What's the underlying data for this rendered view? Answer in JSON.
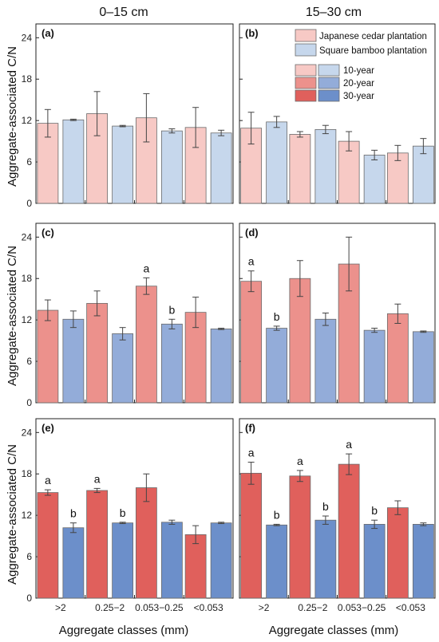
{
  "column_headers": [
    "0–15 cm",
    "15–30 cm"
  ],
  "row_ylabel": "Aggregate-associated C/N",
  "xlabel": "Aggregate classes (mm)",
  "legend": {
    "species": [
      "Japanese cedar plantation",
      "Square bamboo plantation"
    ],
    "ages": [
      "10-year",
      "20-year",
      "30-year"
    ]
  },
  "colors": {
    "cedar": [
      "#f7c9c5",
      "#ec918c",
      "#e0605c"
    ],
    "bamboo": [
      "#c6d7ec",
      "#93acd9",
      "#6c8fca"
    ]
  },
  "chart_data": [
    {
      "type": "bar",
      "panel": "(a)",
      "depth": "0–15 cm",
      "age": "10-year",
      "categories": [
        ">2",
        "0.25−2",
        "0.053−0.25",
        "<0.053"
      ],
      "ylim": [
        0,
        26
      ],
      "yticks": [
        0,
        6,
        12,
        18,
        24
      ],
      "series": [
        {
          "name": "Japanese cedar plantation",
          "values": [
            11.6,
            13.0,
            12.4,
            11.0
          ],
          "errors": [
            2.0,
            3.2,
            3.5,
            2.9
          ],
          "letters": [
            "",
            "",
            "",
            ""
          ]
        },
        {
          "name": "Square bamboo plantation",
          "values": [
            12.1,
            11.2,
            10.5,
            10.2
          ],
          "errors": [
            0.1,
            0.1,
            0.3,
            0.4
          ],
          "letters": [
            "",
            "",
            "",
            ""
          ]
        }
      ]
    },
    {
      "type": "bar",
      "panel": "(b)",
      "depth": "15–30 cm",
      "age": "10-year",
      "categories": [
        ">2",
        "0.25−2",
        "0.053−0.25",
        "<0.053"
      ],
      "ylim": [
        0,
        26
      ],
      "yticks": [
        0,
        6,
        12,
        18,
        24
      ],
      "series": [
        {
          "name": "Japanese cedar plantation",
          "values": [
            10.9,
            10.0,
            9.0,
            7.3
          ],
          "errors": [
            2.3,
            0.4,
            1.4,
            1.1
          ],
          "letters": [
            "",
            "",
            "",
            ""
          ]
        },
        {
          "name": "Square bamboo plantation",
          "values": [
            11.8,
            10.7,
            7.0,
            8.3
          ],
          "errors": [
            0.8,
            0.6,
            0.7,
            1.1
          ],
          "letters": [
            "",
            "",
            "",
            ""
          ]
        }
      ]
    },
    {
      "type": "bar",
      "panel": "(c)",
      "depth": "0–15 cm",
      "age": "20-year",
      "categories": [
        ">2",
        "0.25−2",
        "0.053−0.25",
        "<0.053"
      ],
      "ylim": [
        0,
        26
      ],
      "yticks": [
        0,
        6,
        12,
        18,
        24
      ],
      "series": [
        {
          "name": "Japanese cedar plantation",
          "values": [
            13.4,
            14.4,
            16.9,
            13.1
          ],
          "errors": [
            1.5,
            1.8,
            1.2,
            2.2
          ],
          "letters": [
            "",
            "",
            "a",
            ""
          ]
        },
        {
          "name": "Square bamboo plantation",
          "values": [
            12.1,
            10.0,
            11.4,
            10.7
          ],
          "errors": [
            1.2,
            0.9,
            0.7,
            0.1
          ],
          "letters": [
            "",
            "",
            "b",
            ""
          ]
        }
      ]
    },
    {
      "type": "bar",
      "panel": "(d)",
      "depth": "15–30 cm",
      "age": "20-year",
      "categories": [
        ">2",
        "0.25−2",
        "0.053−0.25",
        "<0.053"
      ],
      "ylim": [
        0,
        26
      ],
      "yticks": [
        0,
        6,
        12,
        18,
        24
      ],
      "series": [
        {
          "name": "Japanese cedar plantation",
          "values": [
            17.6,
            18.0,
            20.1,
            12.9
          ],
          "errors": [
            1.5,
            2.6,
            3.9,
            1.4
          ],
          "letters": [
            "a",
            "",
            "",
            ""
          ]
        },
        {
          "name": "Square bamboo plantation",
          "values": [
            10.8,
            12.1,
            10.5,
            10.3
          ],
          "errors": [
            0.3,
            0.9,
            0.3,
            0.1
          ],
          "letters": [
            "b",
            "",
            "",
            ""
          ]
        }
      ]
    },
    {
      "type": "bar",
      "panel": "(e)",
      "depth": "0–15 cm",
      "age": "30-year",
      "categories": [
        ">2",
        "0.25−2",
        "0.053−0.25",
        "<0.053"
      ],
      "ylim": [
        0,
        26
      ],
      "yticks": [
        0,
        6,
        12,
        18,
        24
      ],
      "series": [
        {
          "name": "Japanese cedar plantation",
          "values": [
            15.3,
            15.6,
            16.0,
            9.2
          ],
          "errors": [
            0.4,
            0.3,
            2.0,
            1.3
          ],
          "letters": [
            "a",
            "a",
            "",
            ""
          ]
        },
        {
          "name": "Square bamboo plantation",
          "values": [
            10.2,
            10.9,
            11.0,
            10.9
          ],
          "errors": [
            0.7,
            0.1,
            0.3,
            0.1
          ],
          "letters": [
            "b",
            "b",
            "",
            ""
          ]
        }
      ]
    },
    {
      "type": "bar",
      "panel": "(f)",
      "depth": "15–30 cm",
      "age": "30-year",
      "categories": [
        ">2",
        "0.25−2",
        "0.053−0.25",
        "<0.053"
      ],
      "ylim": [
        0,
        26
      ],
      "yticks": [
        0,
        6,
        12,
        18,
        24
      ],
      "series": [
        {
          "name": "Japanese cedar plantation",
          "values": [
            18.1,
            17.7,
            19.4,
            13.1
          ],
          "errors": [
            1.6,
            0.8,
            1.5,
            1.0
          ],
          "letters": [
            "a",
            "a",
            "a",
            ""
          ]
        },
        {
          "name": "Square bamboo plantation",
          "values": [
            10.6,
            11.3,
            10.7,
            10.7
          ],
          "errors": [
            0.1,
            0.6,
            0.6,
            0.2
          ],
          "letters": [
            "b",
            "b",
            "b",
            ""
          ]
        }
      ]
    }
  ]
}
